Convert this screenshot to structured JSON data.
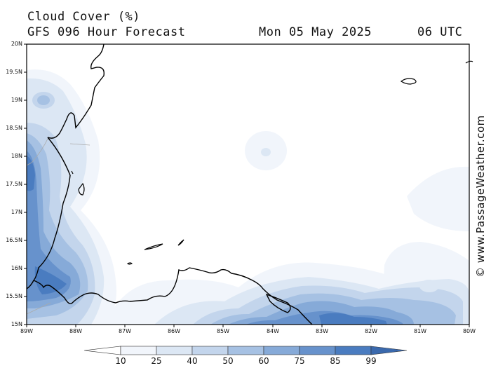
{
  "header": {
    "title": "Cloud Cover (%)",
    "model": "GFS 096 Hour Forecast",
    "date": "Mon 05 May 2025",
    "time": "06 UTC"
  },
  "map": {
    "lat_labels": [
      "20N",
      "19.5N",
      "19N",
      "18.5N",
      "18N",
      "17.5N",
      "17N",
      "16.5N",
      "16N",
      "15.5N",
      "15N"
    ],
    "lon_labels": [
      "89W",
      "88W",
      "87W",
      "86W",
      "85W",
      "84W",
      "83W",
      "82W",
      "81W",
      "80W"
    ]
  },
  "legend": {
    "labels": [
      "10",
      "25",
      "40",
      "50",
      "60",
      "75",
      "85",
      "99"
    ],
    "colors": [
      "#ffffff",
      "#f1f5fb",
      "#dce7f4",
      "#c3d5ec",
      "#a6c1e3",
      "#86aad8",
      "#6792cc",
      "#4a7cc0",
      "#3a69ad"
    ]
  },
  "credit": "© www.PassageWeather.com"
}
